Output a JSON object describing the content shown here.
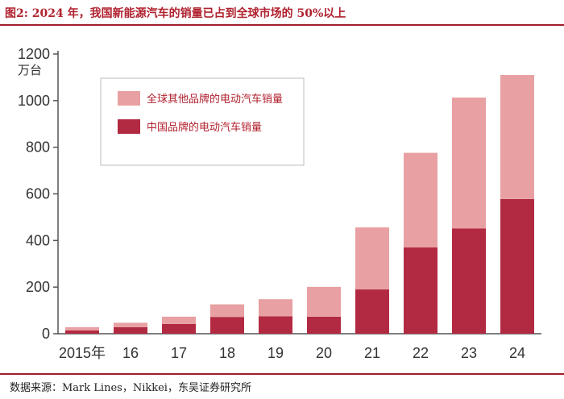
{
  "figure_label": "图2: 2024 年，我国新能源汽车的销量已占到全球市场的 50%以上",
  "source": "数据来源：Mark Lines，Nikkei，东吴证券研究所",
  "colors": {
    "china": "#b22a42",
    "other": "#e8a0a2",
    "accent": "#a31d2a"
  },
  "chart_data": {
    "type": "bar",
    "stacked": true,
    "title": "",
    "ylabel": "万台",
    "xlabel": "",
    "ylim": [
      0,
      1200
    ],
    "yticks": [
      0,
      200,
      400,
      600,
      800,
      1000,
      1200
    ],
    "categories": [
      "2015年",
      "16",
      "17",
      "18",
      "19",
      "20",
      "21",
      "22",
      "23",
      "24"
    ],
    "series": [
      {
        "name": "中国品牌的电动汽车销量",
        "color": "#b22a42",
        "values": [
          14,
          28,
          42,
          72,
          75,
          73,
          190,
          370,
          452,
          578
        ]
      },
      {
        "name": "全球其他品牌的电动汽车销量",
        "color": "#e8a0a2",
        "values": [
          14,
          19,
          31,
          54,
          73,
          128,
          266,
          406,
          561,
          532
        ]
      }
    ],
    "legend": [
      {
        "name": "全球其他品牌的电动汽车销量",
        "color": "#e8a0a2"
      },
      {
        "name": "中国品牌的电动汽车销量",
        "color": "#b22a42"
      }
    ],
    "grid": false,
    "legend_position": "upper-left"
  }
}
